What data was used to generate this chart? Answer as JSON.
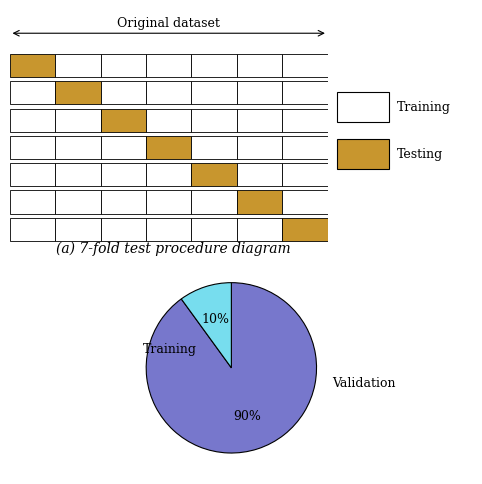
{
  "n_folds": 7,
  "testing_color": "#C8962E",
  "training_color": "#FFFFFF",
  "bar_edgecolor": "#000000",
  "arrow_label": "Original dataset",
  "fold_label_a": "(a) 7-fold test procedure diagram",
  "pie_values": [
    90,
    10
  ],
  "pie_labels": [
    "Training",
    "Validation"
  ],
  "pie_colors": [
    "#7777CC",
    "#77DDEE"
  ],
  "pie_startangle": 72,
  "legend_labels": [
    "Training",
    "Testing"
  ],
  "legend_colors": [
    "#FFFFFF",
    "#C8962E"
  ],
  "background_color": "#FFFFFF",
  "font_size_caption": 10,
  "font_size_legend": 9,
  "font_size_pie_pct": 9,
  "font_size_pie_label": 9,
  "font_size_arrow": 9
}
